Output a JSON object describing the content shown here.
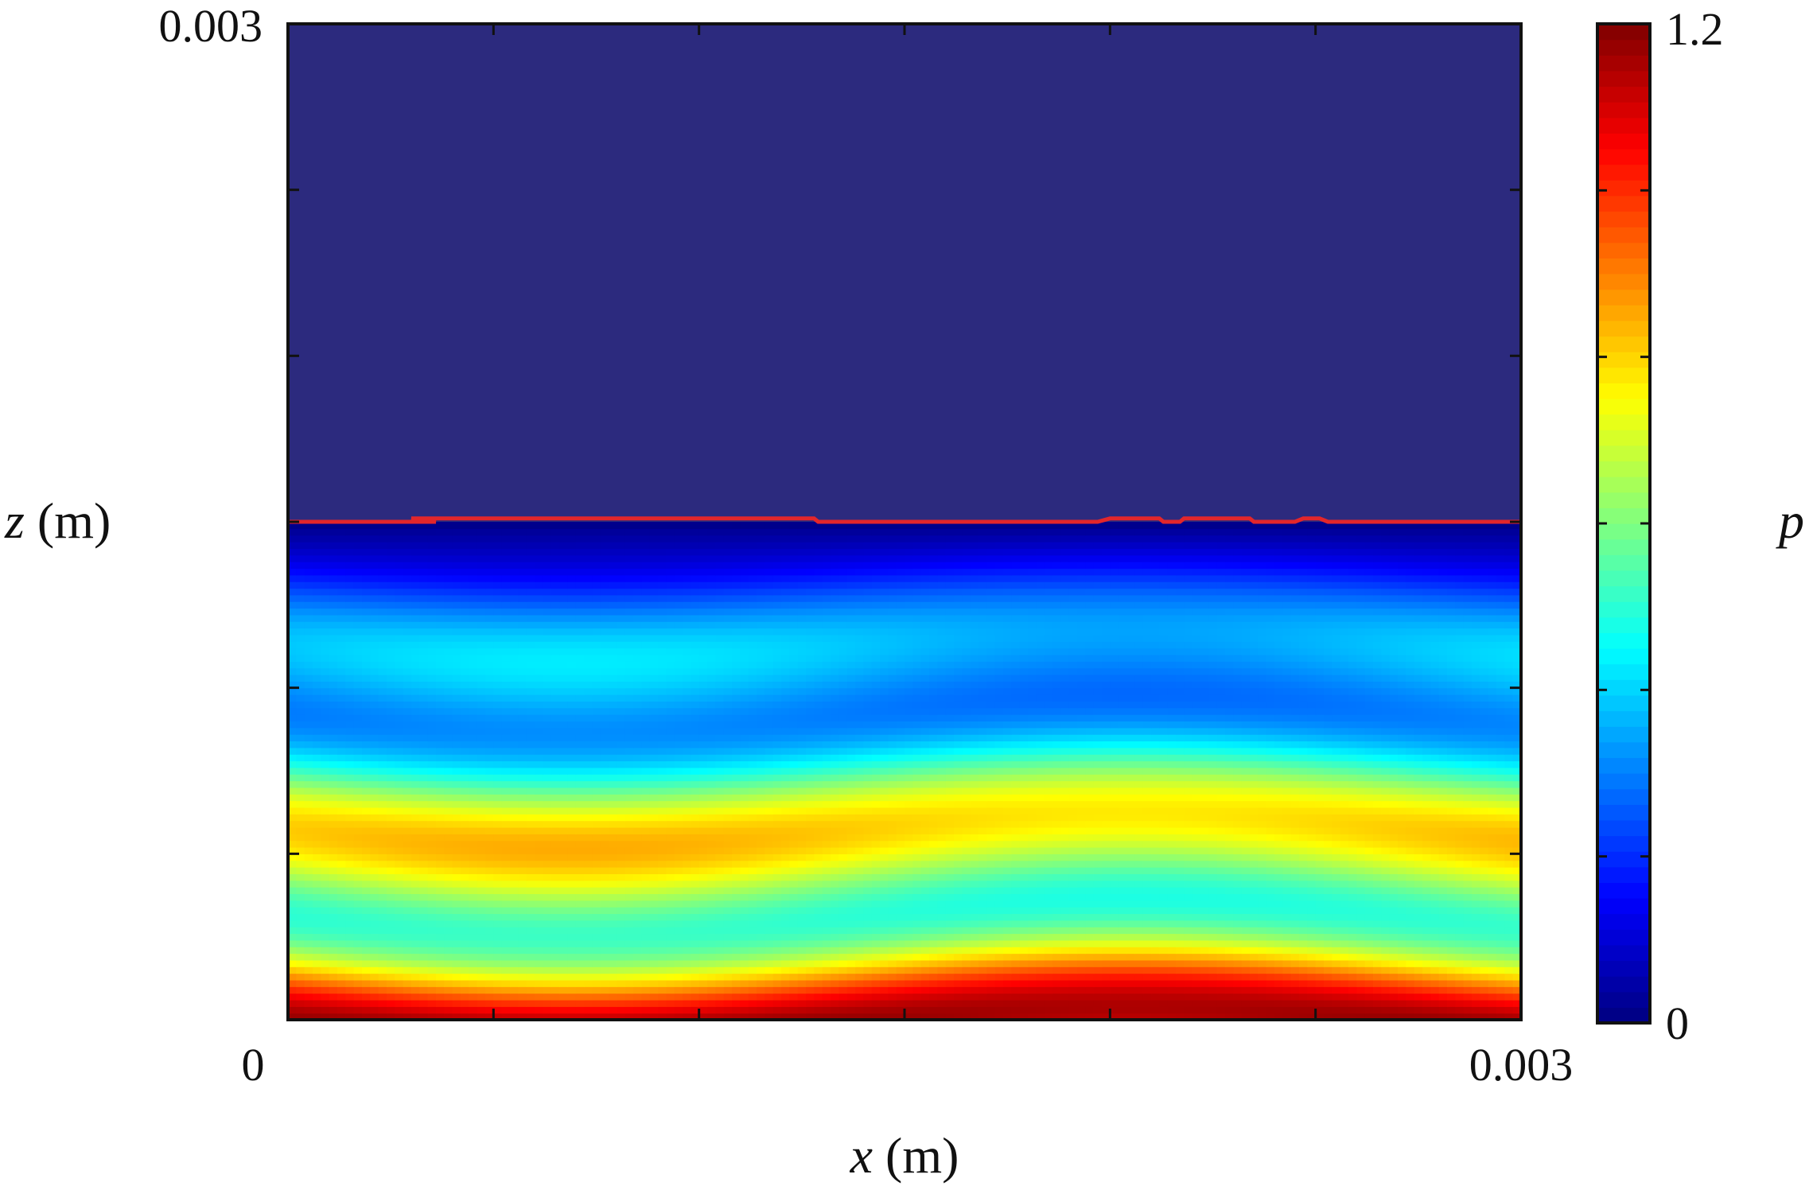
{
  "chart_data": {
    "type": "heatmap",
    "title": "",
    "xlabel": {
      "var": "x",
      "unit": " (m)"
    },
    "ylabel": {
      "var": "z",
      "unit": " (m)"
    },
    "xlim": [
      0,
      0.003
    ],
    "ylim": [
      0,
      0.003
    ],
    "x_ticks": [
      0,
      0.0005,
      0.001,
      0.0015,
      0.002,
      0.0025,
      0.003
    ],
    "x_tick_labels": [
      "0",
      "",
      "",
      "",
      "",
      "",
      "0.003"
    ],
    "y_ticks": [
      0,
      0.0005,
      0.001,
      0.0015,
      0.002,
      0.0025,
      0.003
    ],
    "y_tick_labels": [
      "",
      "",
      "",
      "",
      "",
      "",
      "0.003"
    ],
    "colorbar": {
      "label": "p",
      "range": [
        0,
        1.2
      ],
      "tick_labels": [
        "0",
        "1.2"
      ],
      "colormap": "jet"
    },
    "field": {
      "description_free": true,
      "interface_z": 0.0015,
      "band_slope": -0.00023,
      "band_wavenumber": 10472,
      "max_value": 1.2
    },
    "interface_line": {
      "color": "#e3262b",
      "points": [
        [
          0,
          0.0015
        ],
        [
          0.00036,
          0.0015
        ],
        [
          0.0003,
          0.00151
        ],
        [
          0.00128,
          0.00151
        ],
        [
          0.00129,
          0.0015
        ],
        [
          0.00197,
          0.0015
        ],
        [
          0.002,
          0.00151
        ],
        [
          0.00212,
          0.00151
        ],
        [
          0.00213,
          0.0015
        ],
        [
          0.00217,
          0.0015
        ],
        [
          0.00218,
          0.00151
        ],
        [
          0.00234,
          0.00151
        ],
        [
          0.00235,
          0.0015
        ],
        [
          0.00245,
          0.0015
        ],
        [
          0.00247,
          0.00151
        ],
        [
          0.00251,
          0.00151
        ],
        [
          0.00253,
          0.0015
        ],
        [
          0.003,
          0.0015
        ]
      ]
    }
  }
}
